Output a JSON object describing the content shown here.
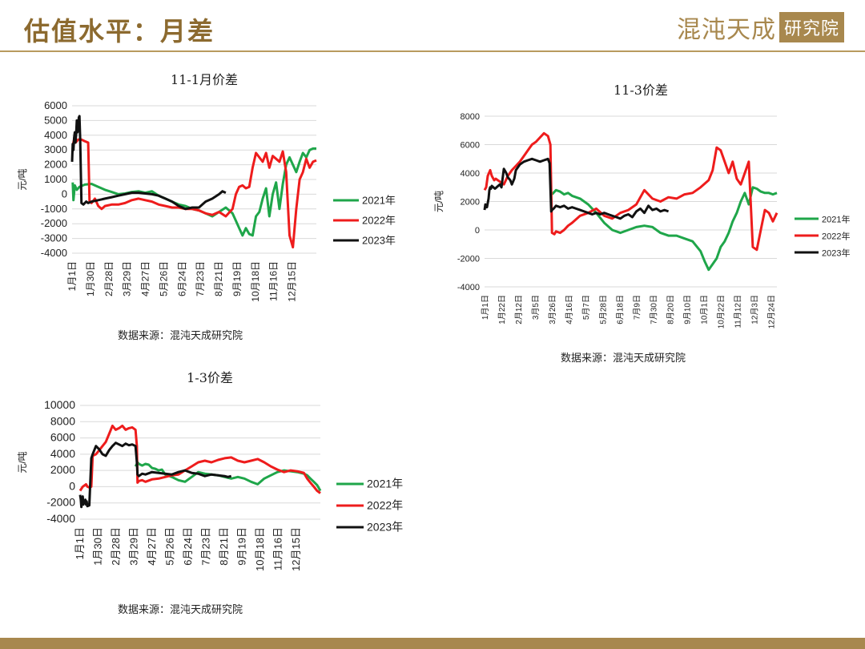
{
  "page": {
    "title": "估值水平：月差",
    "logo_text": "混沌天成",
    "logo_box": "研究院",
    "source_label": "数据来源：混沌天成研究院"
  },
  "colors": {
    "2021年": "#1fa64a",
    "2022年": "#ee1c1c",
    "2023年": "#111111",
    "accent": "#a8884e"
  },
  "chart_data": [
    {
      "type": "line",
      "title": "11-1月价差",
      "ylabel": "元/吨",
      "ylim": [
        -4000,
        6000
      ],
      "yticks": [
        6000,
        5000,
        4000,
        3000,
        2000,
        1000,
        0,
        -1000,
        -2000,
        -3000,
        -4000
      ],
      "xticks": [
        "1月1日",
        "1月30日",
        "2月28日",
        "3月29日",
        "4月27日",
        "5月26日",
        "6月24日",
        "7月23日",
        "8月21日",
        "9月19日",
        "10月18日",
        "11月16日",
        "12月15日"
      ],
      "legend": [
        "2021年",
        "2022年",
        "2023年"
      ],
      "series": [
        {
          "name": "2021年",
          "x": [
            2,
            3,
            5,
            8,
            12,
            20,
            30,
            40,
            50,
            60,
            70,
            80,
            90,
            100,
            110,
            120,
            130,
            140,
            150,
            160,
            170,
            180,
            190,
            200,
            210,
            220,
            230,
            240,
            245,
            250,
            255,
            260,
            265,
            270,
            275,
            280,
            285,
            290,
            295,
            300,
            305,
            310,
            315,
            320,
            325,
            330,
            335,
            340,
            345,
            350,
            355,
            360,
            365
          ],
          "y": [
            800,
            -400,
            600,
            300,
            500,
            650,
            700,
            500,
            300,
            150,
            0,
            50,
            150,
            200,
            100,
            200,
            -100,
            -300,
            -500,
            -700,
            -800,
            -1000,
            -1100,
            -1300,
            -1500,
            -1200,
            -900,
            -1300,
            -1800,
            -2300,
            -2800,
            -2300,
            -2700,
            -2800,
            -1500,
            -1200,
            -300,
            400,
            -1500,
            0,
            800,
            -1000,
            700,
            2000,
            2500,
            2000,
            1500,
            2200,
            2800,
            2500,
            3000,
            3100,
            3100
          ]
        },
        {
          "name": "2022年",
          "x": [
            2,
            4,
            6,
            8,
            10,
            15,
            20,
            25,
            27,
            30,
            35,
            40,
            45,
            50,
            60,
            70,
            80,
            90,
            100,
            110,
            120,
            130,
            140,
            150,
            160,
            170,
            180,
            190,
            200,
            210,
            220,
            230,
            240,
            245,
            250,
            255,
            260,
            265,
            270,
            275,
            280,
            285,
            290,
            295,
            300,
            305,
            310,
            315,
            320,
            325,
            330,
            335,
            340,
            345,
            350,
            355,
            360,
            365
          ],
          "y": [
            3300,
            3700,
            3500,
            3600,
            3700,
            3700,
            3600,
            3500,
            -500,
            -600,
            -300,
            -800,
            -1000,
            -800,
            -700,
            -700,
            -600,
            -400,
            -300,
            -400,
            -500,
            -700,
            -800,
            -900,
            -900,
            -1000,
            -1000,
            -1100,
            -1300,
            -1400,
            -1200,
            -1500,
            -1000,
            0,
            500,
            600,
            400,
            500,
            1800,
            2800,
            2500,
            2200,
            2800,
            1800,
            2600,
            2400,
            2200,
            2900,
            1500,
            -2800,
            -3600,
            -1000,
            1000,
            1500,
            2400,
            1800,
            2200,
            2300
          ]
        },
        {
          "name": "2023年",
          "x": [
            1,
            2,
            3,
            4,
            5,
            6,
            7,
            8,
            9,
            10,
            11,
            12,
            13,
            15,
            18,
            20,
            22,
            25,
            30,
            40,
            50,
            60,
            70,
            80,
            90,
            100,
            110,
            120,
            130,
            140,
            150,
            160,
            170,
            180,
            190,
            200,
            210,
            220,
            225,
            230
          ],
          "y": [
            2200,
            3400,
            3000,
            3800,
            4200,
            3500,
            4000,
            5000,
            4200,
            4500,
            5200,
            5300,
            3800,
            -600,
            -700,
            -600,
            -500,
            -600,
            -500,
            -400,
            -300,
            -200,
            -100,
            0,
            100,
            100,
            50,
            0,
            -100,
            -300,
            -500,
            -800,
            -1000,
            -900,
            -900,
            -500,
            -300,
            0,
            200,
            100
          ]
        }
      ]
    },
    {
      "type": "line",
      "title": "11-3价差",
      "ylabel": "元/吨",
      "ylim": [
        -4000,
        8000
      ],
      "yticks": [
        8000,
        6000,
        4000,
        2000,
        0,
        -2000,
        -4000
      ],
      "xticks": [
        "1月1日",
        "1月22日",
        "2月12日",
        "3月5日",
        "3月26日",
        "4月16日",
        "5月7日",
        "5月28日",
        "6月18日",
        "7月9日",
        "7月30日",
        "8月20日",
        "9月10日",
        "10月1日",
        "10月22日",
        "11月12日",
        "12月3日",
        "12月24日"
      ],
      "legend": [
        "2021年",
        "2022年",
        "2023年"
      ],
      "series": [
        {
          "name": "2021年",
          "x": [
            85,
            90,
            95,
            100,
            105,
            110,
            120,
            130,
            140,
            150,
            160,
            170,
            180,
            190,
            200,
            210,
            220,
            230,
            240,
            250,
            260,
            270,
            275,
            280,
            285,
            290,
            295,
            300,
            305,
            310,
            315,
            320,
            325,
            330,
            335,
            340,
            345,
            350,
            355,
            360,
            365
          ],
          "y": [
            2500,
            2800,
            2700,
            2500,
            2600,
            2400,
            2200,
            1800,
            1200,
            500,
            0,
            -200,
            0,
            200,
            300,
            200,
            -200,
            -400,
            -400,
            -600,
            -800,
            -1500,
            -2200,
            -2800,
            -2400,
            -2000,
            -1200,
            -800,
            -200,
            600,
            1200,
            2000,
            2600,
            1800,
            3000,
            2900,
            2700,
            2600,
            2600,
            2500,
            2600
          ]
        },
        {
          "name": "2022年",
          "x": [
            1,
            3,
            5,
            8,
            10,
            13,
            15,
            20,
            25,
            30,
            35,
            40,
            45,
            50,
            55,
            60,
            65,
            70,
            75,
            80,
            83,
            85,
            88,
            90,
            95,
            100,
            105,
            110,
            120,
            130,
            140,
            150,
            160,
            170,
            180,
            190,
            200,
            210,
            220,
            230,
            240,
            250,
            260,
            270,
            280,
            285,
            290,
            295,
            300,
            305,
            310,
            315,
            320,
            325,
            330,
            335,
            340,
            345,
            350,
            355,
            360,
            365
          ],
          "y": [
            2800,
            3000,
            3800,
            4200,
            3800,
            3500,
            3600,
            3400,
            3200,
            3800,
            4200,
            4500,
            4800,
            5200,
            5600,
            6000,
            6200,
            6500,
            6800,
            6600,
            6000,
            -200,
            -300,
            -100,
            -200,
            0,
            300,
            500,
            1000,
            1200,
            1500,
            1000,
            800,
            1200,
            1400,
            1800,
            2800,
            2200,
            2000,
            2300,
            2200,
            2500,
            2600,
            3000,
            3500,
            4200,
            5800,
            5600,
            4800,
            4000,
            4800,
            3600,
            3200,
            4000,
            4800,
            -1200,
            -1400,
            0,
            1400,
            1200,
            600,
            1200
          ]
        },
        {
          "name": "2023年",
          "x": [
            1,
            2,
            3,
            4,
            5,
            6,
            7,
            8,
            9,
            10,
            12,
            14,
            16,
            18,
            20,
            22,
            25,
            28,
            30,
            33,
            35,
            38,
            40,
            45,
            50,
            55,
            60,
            65,
            70,
            75,
            80,
            82,
            84,
            85,
            87,
            90,
            95,
            100,
            105,
            110,
            115,
            120,
            125,
            130,
            135,
            140,
            145,
            150,
            155,
            160,
            165,
            170,
            175,
            180,
            185,
            190,
            195,
            200,
            205,
            210,
            215,
            220,
            225,
            230
          ],
          "y": [
            1400,
            1800,
            1600,
            1600,
            1900,
            2200,
            2800,
            3000,
            2900,
            3100,
            3000,
            2900,
            3000,
            3100,
            3200,
            3000,
            4300,
            4000,
            3700,
            3500,
            3200,
            3600,
            4200,
            4600,
            4800,
            4900,
            5000,
            4900,
            4800,
            4900,
            5000,
            4700,
            1300,
            1400,
            1500,
            1700,
            1600,
            1700,
            1500,
            1600,
            1500,
            1400,
            1300,
            1200,
            1100,
            1200,
            1100,
            1200,
            1100,
            1000,
            900,
            800,
            1000,
            1100,
            900,
            1300,
            1500,
            1200,
            1700,
            1400,
            1500,
            1300,
            1400,
            1300
          ]
        }
      ]
    },
    {
      "type": "line",
      "title": "1-3价差",
      "ylabel": "元/吨",
      "ylim": [
        -4000,
        10000
      ],
      "yticks": [
        10000,
        8000,
        6000,
        4000,
        2000,
        0,
        -2000,
        -4000
      ],
      "xticks": [
        "1月1日",
        "1月30日",
        "2月28日",
        "3月29日",
        "4月27日",
        "5月26日",
        "6月24日",
        "7月23日",
        "8月21日",
        "9月19日",
        "10月18日",
        "11月16日",
        "12月15日"
      ],
      "legend": [
        "2021年",
        "2022年",
        "2023年"
      ],
      "series": [
        {
          "name": "2021年",
          "x": [
            85,
            88,
            90,
            95,
            100,
            105,
            110,
            115,
            120,
            125,
            130,
            140,
            150,
            160,
            170,
            180,
            190,
            200,
            210,
            220,
            230,
            240,
            250,
            260,
            270,
            280,
            290,
            300,
            310,
            320,
            330,
            340,
            345,
            350,
            355,
            360,
            365
          ],
          "y": [
            2500,
            3000,
            2800,
            2600,
            2800,
            2700,
            2300,
            2200,
            2000,
            2100,
            1500,
            1200,
            800,
            600,
            1200,
            1800,
            1600,
            1500,
            1400,
            1200,
            1000,
            1200,
            1000,
            600,
            300,
            1000,
            1400,
            1800,
            2000,
            1900,
            1800,
            1600,
            1400,
            1000,
            600,
            200,
            -500
          ]
        },
        {
          "name": "2022年",
          "x": [
            1,
            5,
            10,
            12,
            15,
            18,
            20,
            25,
            30,
            35,
            40,
            45,
            50,
            55,
            60,
            65,
            70,
            75,
            80,
            85,
            87,
            88,
            90,
            95,
            100,
            110,
            120,
            130,
            140,
            150,
            160,
            170,
            180,
            190,
            200,
            210,
            220,
            230,
            240,
            250,
            260,
            270,
            280,
            290,
            300,
            310,
            320,
            330,
            340,
            345,
            350,
            355,
            360,
            365
          ],
          "y": [
            -500,
            0,
            300,
            0,
            -100,
            0,
            3800,
            4000,
            4500,
            5000,
            5500,
            6500,
            7500,
            7000,
            7200,
            7500,
            7000,
            7200,
            7300,
            7000,
            5000,
            500,
            700,
            800,
            600,
            900,
            1000,
            1200,
            1400,
            1500,
            2000,
            2500,
            3000,
            3200,
            3000,
            3300,
            3500,
            3600,
            3200,
            3000,
            3200,
            3400,
            3000,
            2500,
            2100,
            1800,
            2000,
            1900,
            1700,
            1000,
            500,
            0,
            -500,
            -800
          ]
        },
        {
          "name": "2023年",
          "x": [
            1,
            2,
            3,
            4,
            5,
            6,
            7,
            8,
            9,
            10,
            11,
            12,
            15,
            18,
            20,
            25,
            30,
            35,
            40,
            45,
            50,
            55,
            60,
            65,
            70,
            75,
            80,
            85,
            87,
            88,
            90,
            95,
            100,
            110,
            120,
            130,
            140,
            150,
            160,
            170,
            180,
            190,
            200,
            210,
            220,
            225,
            230
          ],
          "y": [
            -1000,
            -1500,
            -2500,
            -1600,
            -1200,
            -2200,
            -1800,
            -2000,
            -1600,
            -2200,
            -1800,
            -2400,
            -2300,
            3500,
            4000,
            5000,
            4600,
            4000,
            3800,
            4500,
            5000,
            5400,
            5200,
            5000,
            5300,
            5100,
            5200,
            5000,
            3000,
            1500,
            1300,
            1600,
            1500,
            1800,
            1700,
            1600,
            1500,
            1800,
            2000,
            1700,
            1600,
            1300,
            1500,
            1400,
            1300,
            1200,
            1300
          ]
        }
      ]
    }
  ]
}
